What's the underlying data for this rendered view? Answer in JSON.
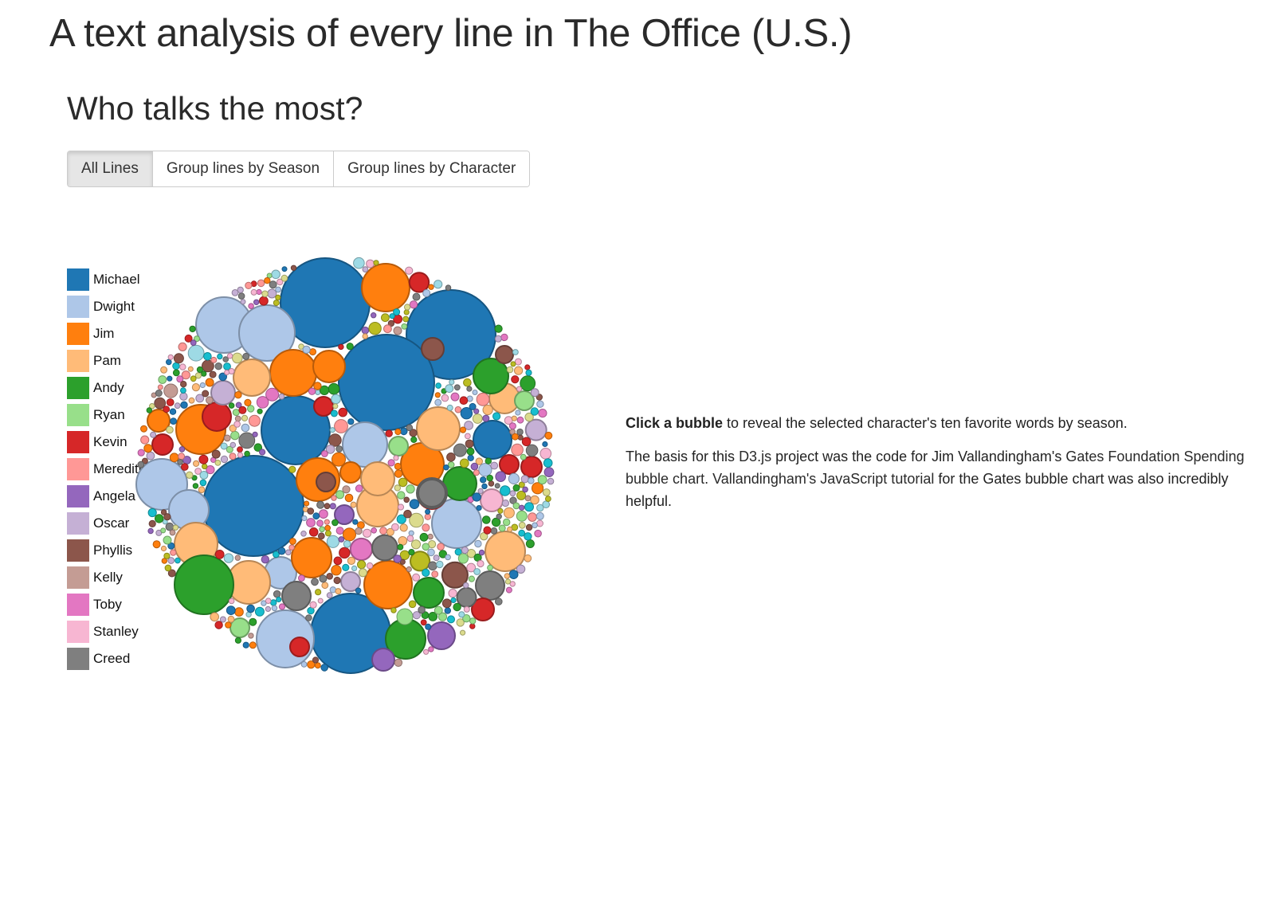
{
  "page": {
    "title": "A text analysis of every line in The Office (U.S.)",
    "section_title": "Who talks the most?"
  },
  "view_buttons": {
    "all_lines": "All Lines",
    "by_season": "Group lines by Season",
    "by_character": "Group lines by Character",
    "active": "all_lines"
  },
  "info": {
    "instruction_strong": "Click a bubble",
    "instruction_rest": " to reveal the selected character's ten favorite words by season.",
    "basis_1": "The basis for this ",
    "basis_link_1": "D3.js",
    "basis_2": " project was the code for Jim Vallandingham's ",
    "basis_link_2": "Gates Foundation Spending bubble chart",
    "basis_3": ". ",
    "basis_link_3": "Vallandingham's JavaScript tutorial",
    "basis_4": " for the Gates bubble chart was also incredibly helpful."
  },
  "chart_data": {
    "type": "bubble",
    "legend": [
      {
        "name": "Michael",
        "color": "#1f77b4"
      },
      {
        "name": "Dwight",
        "color": "#aec7e8"
      },
      {
        "name": "Jim",
        "color": "#ff7f0e"
      },
      {
        "name": "Pam",
        "color": "#ffbb78"
      },
      {
        "name": "Andy",
        "color": "#2ca02c"
      },
      {
        "name": "Ryan",
        "color": "#98df8a"
      },
      {
        "name": "Kevin",
        "color": "#d62728"
      },
      {
        "name": "Meredith",
        "color": "#ff9896"
      },
      {
        "name": "Angela",
        "color": "#9467bd"
      },
      {
        "name": "Oscar",
        "color": "#c5b0d5"
      },
      {
        "name": "Phyllis",
        "color": "#8c564b"
      },
      {
        "name": "Kelly",
        "color": "#c49c94"
      },
      {
        "name": "Toby",
        "color": "#e377c2"
      },
      {
        "name": "Stanley",
        "color": "#f7b6d2"
      },
      {
        "name": "Creed",
        "color": "#7f7f7f"
      }
    ],
    "extra_colors": [
      "#bcbd22",
      "#dbdb8d",
      "#17becf",
      "#9edae5"
    ]
  }
}
